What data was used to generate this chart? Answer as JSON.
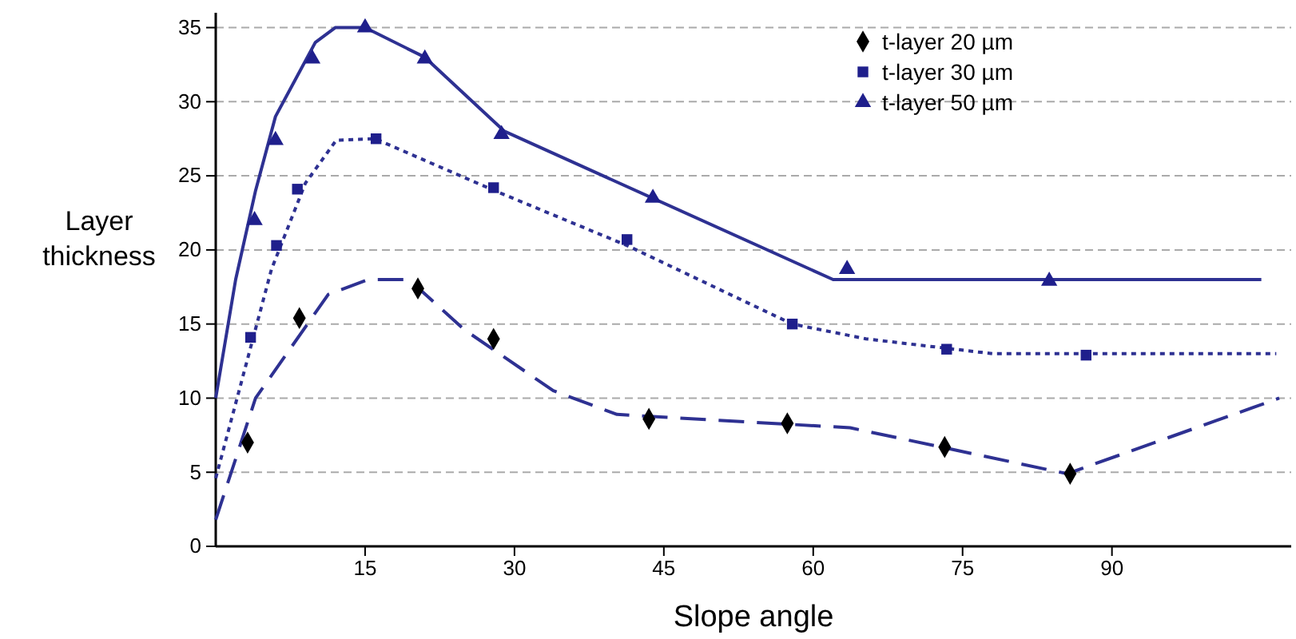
{
  "chart_data": {
    "type": "line",
    "xlabel": "Slope angle",
    "ylabel": "Layer thickness",
    "xlim": [
      0,
      108
    ],
    "ylim": [
      0,
      36
    ],
    "xticks": [
      15,
      30,
      45,
      60,
      75,
      90
    ],
    "yticks": [
      0,
      5,
      10,
      15,
      20,
      25,
      30,
      35
    ],
    "grid": "y",
    "legend": "top right",
    "series": [
      {
        "type": "line",
        "color": "#2e3192",
        "line_style": "dashed",
        "marker": "none",
        "x": [
          0,
          4,
          11.3,
          15.3,
          19.4,
          25,
          33.9,
          40.3,
          63.7,
          85.5,
          106.8
        ],
        "values": [
          1.8,
          10,
          17,
          18,
          18,
          14.6,
          10.5,
          8.9,
          8,
          4.9,
          10
        ]
      },
      {
        "type": "line",
        "color": "#2e3192",
        "line_style": "dotted",
        "marker": "none",
        "x": [
          0,
          5.6,
          9,
          12.1,
          16,
          28,
          41.3,
          57.9,
          65.3,
          78,
          106.5
        ],
        "values": [
          4.6,
          18.7,
          24.5,
          27.4,
          27.5,
          24,
          20.3,
          15,
          14,
          13,
          13
        ]
      },
      {
        "type": "line",
        "color": "#2e3192",
        "line_style": "solid",
        "marker": "none",
        "x": [
          0,
          2,
          4,
          6,
          8,
          10,
          12,
          15,
          21,
          29,
          62,
          105
        ],
        "values": [
          10,
          18,
          24,
          29,
          31.5,
          34,
          35,
          35,
          33,
          28,
          18,
          18
        ]
      },
      {
        "type": "scatter",
        "name": "t-layer 20 µm",
        "color": "#000000",
        "marker": "diamond",
        "x": [
          3.2,
          8.4,
          20.3,
          27.9,
          43.5,
          57.4,
          73.2,
          85.8
        ],
        "values": [
          7.0,
          15.4,
          17.4,
          14.0,
          8.6,
          8.3,
          6.7,
          4.9
        ]
      },
      {
        "type": "scatter",
        "name": "t-layer 30 µm",
        "color": "#1f1f8c",
        "marker": "square",
        "x": [
          3.5,
          6.1,
          8.2,
          16.1,
          27.9,
          41.3,
          57.9,
          73.4,
          87.4
        ],
        "values": [
          14.1,
          20.3,
          24.1,
          27.5,
          24.2,
          20.7,
          15.0,
          13.3,
          12.9
        ]
      },
      {
        "type": "scatter",
        "name": "t-layer 50 µm",
        "color": "#1f1f8c",
        "marker": "triangle",
        "x": [
          3.9,
          6.0,
          9.7,
          15.0,
          21.0,
          28.7,
          43.9,
          63.4,
          83.7
        ],
        "values": [
          22.0,
          27.4,
          32.9,
          35.0,
          32.9,
          27.8,
          23.5,
          18.7,
          17.9
        ]
      }
    ]
  }
}
